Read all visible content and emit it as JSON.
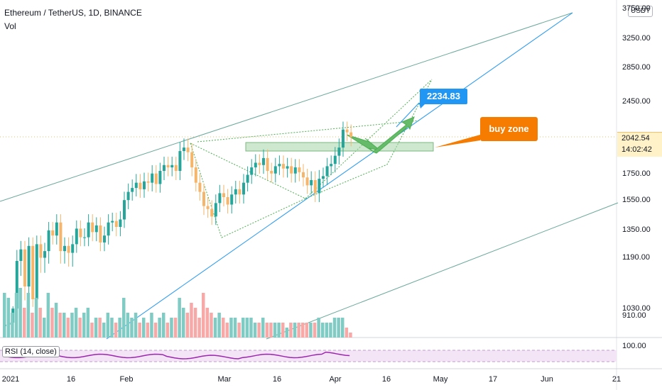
{
  "header": {
    "title": "Ethereum / TetherUS, 1D, BINANCE",
    "volume_label": "Vol",
    "rsi_label": "RSI (14, close)",
    "currency": "USDT"
  },
  "price_readout": {
    "last_price": "2042.54",
    "countdown": "14:02:42"
  },
  "annotations": {
    "target_price": "2234.83",
    "buy_zone": "buy zone"
  },
  "y_axis_labels": [
    "3750.00",
    "3250.00",
    "2850.00",
    "2450.00",
    "1750.00",
    "1550.00",
    "1350.00",
    "1190.00",
    "1030.00",
    "910.00",
    "100.00"
  ],
  "x_axis_labels": [
    "2021",
    "16",
    "Feb",
    "Mar",
    "16",
    "Apr",
    "16",
    "May",
    "17",
    "Jun",
    "21"
  ],
  "colors": {
    "up": "#26a69a",
    "down": "#ef5350",
    "volume_up": "#80cbc4",
    "volume_down": "#f7a9a7",
    "channel": "#6aa89a",
    "trendline": "#2196f3",
    "rsi": "#9c27b0",
    "rsi_band": "#f3e5f5",
    "zone": "#a5d6a7",
    "projection": "#4caf50"
  },
  "chart_data": {
    "type": "candlestick",
    "series": [
      {
        "name": "ETHUSDT",
        "close_points": [
          [
            0,
            730
          ],
          [
            1,
            760
          ],
          [
            2,
            980
          ],
          [
            3,
            1170
          ],
          [
            4,
            1220
          ],
          [
            5,
            1090
          ],
          [
            6,
            1240
          ],
          [
            7,
            1050
          ],
          [
            8,
            1250
          ],
          [
            9,
            1180
          ],
          [
            10,
            1210
          ],
          [
            11,
            1330
          ],
          [
            12,
            1300
          ],
          [
            13,
            1380
          ],
          [
            14,
            1210
          ],
          [
            15,
            1240
          ],
          [
            16,
            1200
          ],
          [
            17,
            1250
          ],
          [
            18,
            1340
          ],
          [
            19,
            1290
          ],
          [
            20,
            1290
          ],
          [
            21,
            1380
          ],
          [
            22,
            1320
          ],
          [
            23,
            1360
          ],
          [
            24,
            1260
          ],
          [
            25,
            1300
          ],
          [
            26,
            1380
          ],
          [
            27,
            1390
          ],
          [
            28,
            1350
          ],
          [
            29,
            1400
          ],
          [
            30,
            1530
          ],
          [
            31,
            1590
          ],
          [
            32,
            1620
          ],
          [
            33,
            1660
          ],
          [
            34,
            1610
          ],
          [
            35,
            1670
          ],
          [
            36,
            1660
          ],
          [
            37,
            1730
          ],
          [
            38,
            1650
          ],
          [
            39,
            1750
          ],
          [
            40,
            1800
          ],
          [
            41,
            1780
          ],
          [
            42,
            1800
          ],
          [
            43,
            1750
          ],
          [
            44,
            1920
          ],
          [
            45,
            1950
          ],
          [
            46,
            1910
          ],
          [
            47,
            1780
          ],
          [
            48,
            1660
          ],
          [
            49,
            1590
          ],
          [
            50,
            1490
          ],
          [
            51,
            1470
          ],
          [
            52,
            1420
          ],
          [
            53,
            1510
          ],
          [
            54,
            1580
          ],
          [
            55,
            1550
          ],
          [
            56,
            1500
          ],
          [
            57,
            1570
          ],
          [
            58,
            1610
          ],
          [
            59,
            1570
          ],
          [
            60,
            1660
          ],
          [
            61,
            1720
          ],
          [
            62,
            1780
          ],
          [
            63,
            1820
          ],
          [
            64,
            1800
          ],
          [
            65,
            1860
          ],
          [
            66,
            1750
          ],
          [
            67,
            1730
          ],
          [
            68,
            1790
          ],
          [
            69,
            1810
          ],
          [
            70,
            1770
          ],
          [
            71,
            1790
          ],
          [
            72,
            1730
          ],
          [
            73,
            1780
          ],
          [
            74,
            1740
          ],
          [
            75,
            1700
          ],
          [
            76,
            1640
          ],
          [
            77,
            1680
          ],
          [
            78,
            1580
          ],
          [
            79,
            1690
          ],
          [
            80,
            1710
          ],
          [
            81,
            1790
          ],
          [
            82,
            1810
          ],
          [
            83,
            1880
          ],
          [
            84,
            1950
          ],
          [
            85,
            2120
          ],
          [
            86,
            2090
          ],
          [
            87,
            2042
          ]
        ]
      }
    ],
    "volume_relative": [
      0.9,
      0.8,
      0.5,
      0.9,
      1,
      0.6,
      0.9,
      0.5,
      0.8,
      0.6,
      0.4,
      0.9,
      0.6,
      0.7,
      0.5,
      0.5,
      0.4,
      0.5,
      0.6,
      0.4,
      0.5,
      0.6,
      0.3,
      0.4,
      0.4,
      0.3,
      0.5,
      0.4,
      0.3,
      0.4,
      0.8,
      0.5,
      0.4,
      0.5,
      0.3,
      0.4,
      0.3,
      0.5,
      0.3,
      0.4,
      0.5,
      0.3,
      0.4,
      0.4,
      0.8,
      0.6,
      0.5,
      0.7,
      0.6,
      0.4,
      0.9,
      0.6,
      0.5,
      0.4,
      0.5,
      0.4,
      0.3,
      0.4,
      0.4,
      0.3,
      0.4,
      0.4,
      0.4,
      0.3,
      0.3,
      0.4,
      0.3,
      0.3,
      0.3,
      0.3,
      0.3,
      0.2,
      0.3,
      0.3,
      0.3,
      0.3,
      0.3,
      0.3,
      0.3,
      0.4,
      0.3,
      0.3,
      0.3,
      0.4,
      0.4,
      0.4,
      0.2,
      0.1
    ],
    "ylim": [
      100,
      3750
    ],
    "x_ticks": [
      "2021",
      "16",
      "Feb",
      "Mar",
      "16",
      "Apr",
      "16",
      "May",
      "17",
      "Jun",
      "21"
    ],
    "y_ticks": [
      3750,
      3250,
      2850,
      2450,
      1750,
      1550,
      1350,
      1190,
      1030,
      910,
      100
    ],
    "annotations": [
      {
        "type": "price_label",
        "text": "2234.83"
      },
      {
        "type": "callout",
        "text": "buy zone"
      }
    ]
  }
}
